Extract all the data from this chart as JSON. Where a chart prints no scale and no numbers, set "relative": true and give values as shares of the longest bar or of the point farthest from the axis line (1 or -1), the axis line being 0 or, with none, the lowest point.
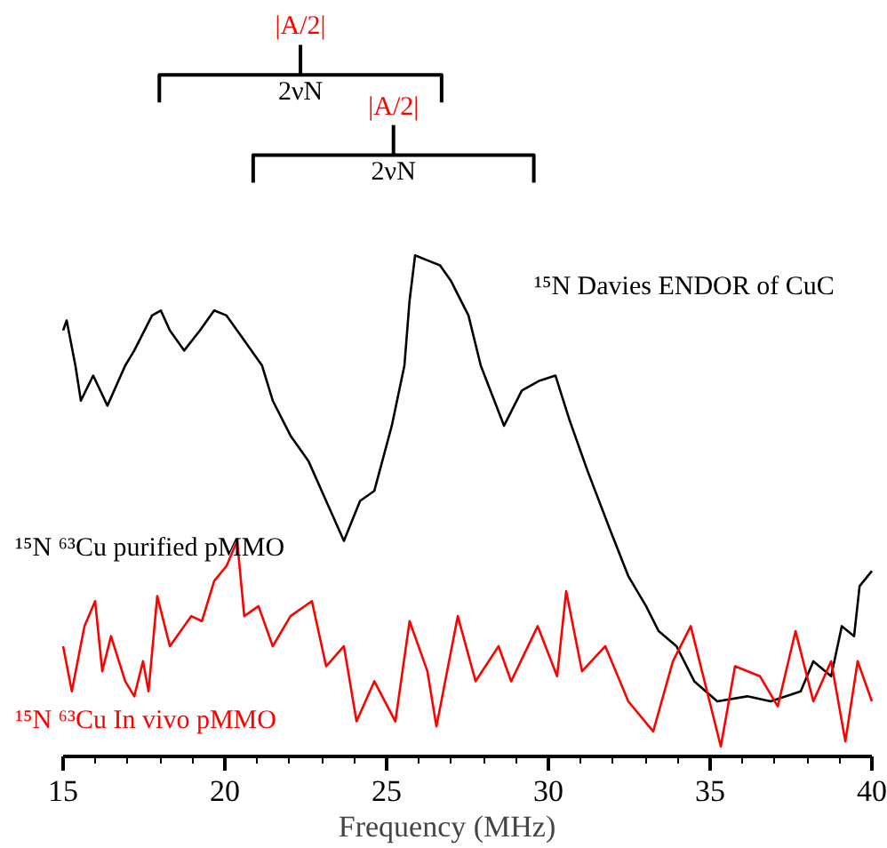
{
  "chart_data": {
    "type": "line",
    "relative": true,
    "xlabel": "Frequency (MHz)",
    "xlim": [
      15,
      40
    ],
    "xticks": [
      15,
      20,
      25,
      30,
      35,
      40
    ],
    "tick_labels": "x",
    "grid": false,
    "legend": false,
    "marker": "none",
    "line_style": "solid",
    "series": [
      {
        "name": "¹⁵N ⁶³Cu purified pMMO",
        "color": "#000000",
        "x": [
          15.0,
          15.11,
          15.38,
          15.55,
          15.93,
          16.37,
          16.92,
          17.2,
          17.75,
          18.02,
          18.3,
          18.74,
          19.23,
          19.67,
          20.05,
          20.6,
          21.15,
          21.48,
          22.03,
          22.58,
          23.13,
          23.68,
          24.18,
          24.62,
          25.16,
          25.55,
          25.71,
          25.88,
          26.26,
          26.65,
          26.98,
          27.53,
          27.91,
          28.63,
          29.18,
          29.73,
          30.22,
          30.66,
          31.21,
          31.92,
          32.47,
          33.02,
          33.41,
          33.96,
          34.51,
          35.22,
          36.15,
          36.87,
          37.8,
          38.19,
          38.74,
          39.07,
          39.45,
          39.62,
          40.0
        ],
        "values": [
          0.85,
          0.87,
          0.78,
          0.71,
          0.76,
          0.7,
          0.78,
          0.81,
          0.88,
          0.89,
          0.85,
          0.81,
          0.85,
          0.89,
          0.88,
          0.83,
          0.78,
          0.71,
          0.64,
          0.59,
          0.51,
          0.43,
          0.51,
          0.53,
          0.66,
          0.78,
          0.91,
          1.0,
          0.99,
          0.98,
          0.95,
          0.88,
          0.78,
          0.66,
          0.73,
          0.75,
          0.76,
          0.67,
          0.57,
          0.45,
          0.36,
          0.3,
          0.25,
          0.22,
          0.15,
          0.11,
          0.12,
          0.11,
          0.13,
          0.19,
          0.16,
          0.26,
          0.24,
          0.34,
          0.37
        ]
      },
      {
        "name": "¹⁵N ⁶³Cu In vivo pMMO",
        "color": "#ff0000",
        "x": [
          15.0,
          15.27,
          15.66,
          15.99,
          16.21,
          16.48,
          16.92,
          17.2,
          17.47,
          17.64,
          17.91,
          18.3,
          18.96,
          19.29,
          19.67,
          20.05,
          20.38,
          20.6,
          21.04,
          21.48,
          22.03,
          22.69,
          23.13,
          23.68,
          24.07,
          24.62,
          25.27,
          25.71,
          26.26,
          26.54,
          27.2,
          27.75,
          28.46,
          28.85,
          29.67,
          30.27,
          30.55,
          31.04,
          31.76,
          32.47,
          33.24,
          33.85,
          34.4,
          35.33,
          35.77,
          36.54,
          37.09,
          37.64,
          38.19,
          38.74,
          39.18,
          39.56,
          40.0
        ],
        "values": [
          0.22,
          0.13,
          0.26,
          0.31,
          0.17,
          0.24,
          0.15,
          0.12,
          0.19,
          0.13,
          0.32,
          0.22,
          0.28,
          0.27,
          0.35,
          0.38,
          0.43,
          0.28,
          0.3,
          0.22,
          0.28,
          0.31,
          0.18,
          0.22,
          0.07,
          0.15,
          0.07,
          0.27,
          0.17,
          0.06,
          0.28,
          0.15,
          0.22,
          0.15,
          0.26,
          0.16,
          0.33,
          0.17,
          0.22,
          0.11,
          0.05,
          0.19,
          0.26,
          0.02,
          0.18,
          0.16,
          0.1,
          0.25,
          0.11,
          0.19,
          0.03,
          0.19,
          0.11
        ]
      }
    ],
    "annotations": [
      "|A/2|",
      "2νN",
      "|A/2|",
      "2νN",
      "¹⁵N Davies ENDOR of CuC"
    ]
  }
}
